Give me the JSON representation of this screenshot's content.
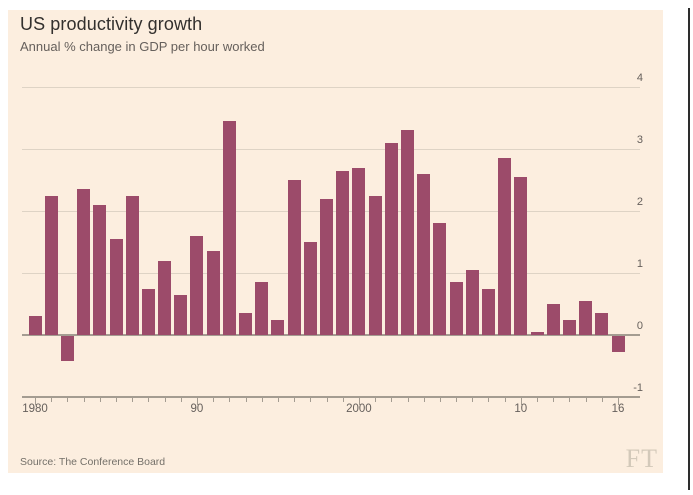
{
  "header": {
    "title": "US productivity growth",
    "subtitle": "Annual % change in GDP per hour worked"
  },
  "footer": {
    "source": "Source: The Conference Board",
    "logo_text": "FT"
  },
  "chart_data": {
    "type": "bar",
    "title": "US productivity growth",
    "subtitle": "Annual % change in GDP per hour worked",
    "source": "Source: The Conference Board",
    "unit": "% annual change in GDP per hour worked",
    "years": [
      1980,
      1981,
      1982,
      1983,
      1984,
      1985,
      1986,
      1987,
      1988,
      1989,
      1990,
      1991,
      1992,
      1993,
      1994,
      1995,
      1996,
      1997,
      1998,
      1999,
      2000,
      2001,
      2002,
      2003,
      2004,
      2005,
      2006,
      2007,
      2008,
      2009,
      2010,
      2011,
      2012,
      2013,
      2014,
      2015,
      2016
    ],
    "values": [
      0.3,
      2.25,
      -0.4,
      2.35,
      2.1,
      1.55,
      2.25,
      0.75,
      1.2,
      0.65,
      1.6,
      1.35,
      3.45,
      0.35,
      0.85,
      0.25,
      2.5,
      1.5,
      2.2,
      2.65,
      2.7,
      2.25,
      3.1,
      3.3,
      2.6,
      1.8,
      0.85,
      1.05,
      0.75,
      2.85,
      2.55,
      0.05,
      0.5,
      0.25,
      0.55,
      0.35,
      -0.25
    ],
    "ylim": [
      -1,
      4
    ],
    "yticks": [
      4,
      3,
      2,
      1,
      0,
      -1
    ],
    "y_axis_side": "right",
    "grid": "horizontal",
    "legend": "none",
    "xticks": [
      {
        "year": 1980,
        "label": "1980"
      },
      {
        "year": 1990,
        "label": "90"
      },
      {
        "year": 2000,
        "label": "2000"
      },
      {
        "year": 2010,
        "label": "10"
      },
      {
        "year": 2016,
        "label": "16"
      }
    ],
    "colors": {
      "background": "#fceedf",
      "bar": "#9c4b6a",
      "gridline": "#ded3c5",
      "axis_line": "#a49c91",
      "title_text": "#33302e",
      "muted_text": "#66605c",
      "source_text": "#747069",
      "logo": "#d3c9ba"
    }
  }
}
